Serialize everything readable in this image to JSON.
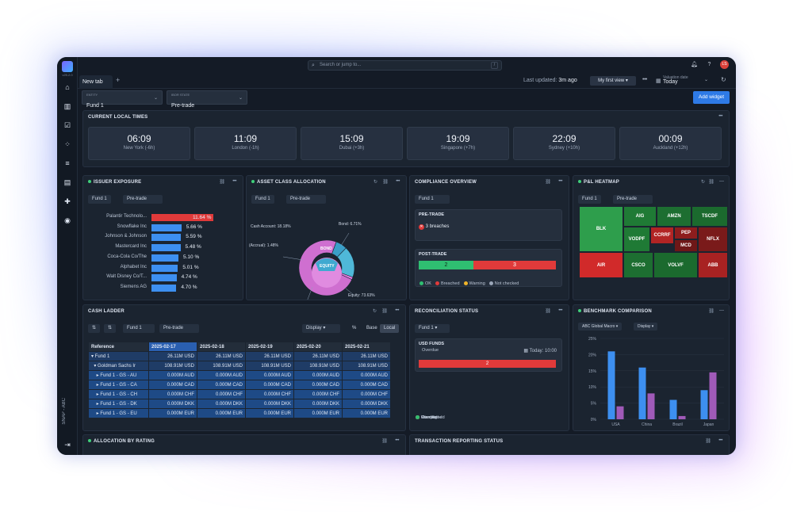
{
  "app": {
    "version": "v25.2.0",
    "snap_label": "SNAP - ABC"
  },
  "search": {
    "placeholder": "Search or jump to...",
    "shortcut": "/"
  },
  "user": {
    "initials": "LS"
  },
  "tabs": [
    {
      "label": "New tab"
    }
  ],
  "header": {
    "last_updated_label": "Last updated:",
    "last_updated_value": "3m ago",
    "view_label": "My first view",
    "valuation_label": "Valuation date",
    "valuation_value": "Today",
    "add_widget": "Add widget"
  },
  "filters": {
    "entity": {
      "label": "ENTITY",
      "value": "Fund 1"
    },
    "ibor": {
      "label": "IBOR STATE",
      "value": "Pre-trade"
    }
  },
  "local_times": {
    "title": "CURRENT LOCAL TIMES",
    "clocks": [
      {
        "time": "06:09",
        "zone": "New York (-6h)"
      },
      {
        "time": "11:09",
        "zone": "London (-1h)"
      },
      {
        "time": "15:09",
        "zone": "Dubai (+3h)"
      },
      {
        "time": "19:09",
        "zone": "Singapore (+7h)"
      },
      {
        "time": "22:09",
        "zone": "Sydney (+10h)"
      },
      {
        "time": "00:09",
        "zone": "Auckland (+12h)"
      }
    ]
  },
  "issuer_exposure": {
    "title": "ISSUER EXPOSURE",
    "fund": "Fund 1",
    "state": "Pre-trade",
    "rows": [
      {
        "name": "Palantir Technolo...",
        "value": "11.64 %",
        "pct": 11.64,
        "color": "#e03a3a"
      },
      {
        "name": "Snowflake Inc",
        "value": "5.66 %",
        "pct": 5.66,
        "color": "#3d8ff0"
      },
      {
        "name": "Johnson & Johnson",
        "value": "5.59 %",
        "pct": 5.59,
        "color": "#3d8ff0"
      },
      {
        "name": "Mastercard Inc",
        "value": "5.48 %",
        "pct": 5.48,
        "color": "#3d8ff0"
      },
      {
        "name": "Coca-Cola Co/The",
        "value": "5.10 %",
        "pct": 5.1,
        "color": "#3d8ff0"
      },
      {
        "name": "Alphabet Inc",
        "value": "5.01 %",
        "pct": 5.01,
        "color": "#3d8ff0"
      },
      {
        "name": "Walt Disney Co/T...",
        "value": "4.74 %",
        "pct": 4.74,
        "color": "#3d8ff0"
      },
      {
        "name": "Siemens AG",
        "value": "4.70 %",
        "pct": 4.7,
        "color": "#3d8ff0"
      }
    ]
  },
  "asset_allocation": {
    "title": "ASSET CLASS ALLOCATION",
    "fund": "Fund 1",
    "state": "Pre-trade",
    "labels": {
      "bond": "Bond: 6.71%",
      "cash": "Cash Account: 18.18%",
      "accrual": "(Accrual): 1.48%",
      "equity": "Equity: 73.63%",
      "inner_bond": "BOND",
      "inner_equity": "EQUITY"
    },
    "slices": [
      {
        "name": "Equity",
        "value": 73.63,
        "color": "#cf6fd0"
      },
      {
        "name": "Cash Account",
        "value": 18.18,
        "color": "#4fb8d8"
      },
      {
        "name": "Bond",
        "value": 6.71,
        "color": "#3a9fc8"
      },
      {
        "name": "(Accrual)",
        "value": 1.48,
        "color": "#e07de0"
      }
    ]
  },
  "compliance": {
    "title": "COMPLIANCE OVERVIEW",
    "fund": "Fund 1",
    "pretrade_title": "PRE-TRADE",
    "breaches": "3 breaches",
    "posttrade_title": "POST-TRADE",
    "ok_count": "2",
    "breached_count": "3",
    "legend": [
      {
        "label": "OK",
        "color": "#2fbf71"
      },
      {
        "label": "Breached",
        "color": "#e03a3a"
      },
      {
        "label": "Warning",
        "color": "#f0b429"
      },
      {
        "label": "Not checked",
        "color": "#9aa6b8"
      }
    ]
  },
  "heatmap": {
    "title": "P&L HEATMAP",
    "fund": "Fund 1",
    "state": "Pre-trade",
    "tiles": [
      {
        "label": "BLK",
        "color": "#2e9e4c"
      },
      {
        "label": "AIG",
        "color": "#1f7a35"
      },
      {
        "label": "AMZN",
        "color": "#1d6e31"
      },
      {
        "label": "TSCDF",
        "color": "#1b6a2e"
      },
      {
        "label": "VODPF",
        "color": "#1f7a35"
      },
      {
        "label": "CCRRF",
        "color": "#b22424"
      },
      {
        "label": "PEP",
        "color": "#8e1d1d"
      },
      {
        "label": "NFLX",
        "color": "#7a1a1a"
      },
      {
        "label": "MCD",
        "color": "#6e1717"
      },
      {
        "label": "AIR",
        "color": "#d12a2a"
      },
      {
        "label": "CSCO",
        "color": "#1d6e31"
      },
      {
        "label": "VOLVF",
        "color": "#1b6a2e"
      },
      {
        "label": "ABB",
        "color": "#a82222"
      }
    ]
  },
  "cash_ladder": {
    "title": "CASH LADDER",
    "fund": "Fund 1",
    "state": "Pre-trade",
    "display": "Display",
    "toggles": [
      "%",
      "Base",
      "Local"
    ],
    "columns": [
      "Reference",
      "2025-02-17",
      "2025-02-18",
      "2025-02-19",
      "2025-02-20",
      "2025-02-21"
    ],
    "rows": [
      {
        "ref": "▾ Fund 1",
        "vals": [
          "26.11M USD",
          "26.11M USD",
          "26.11M USD",
          "26.11M USD",
          "26.11M USD"
        ]
      },
      {
        "ref": "  ▾ Goldman Sachs Ir",
        "vals": [
          "108.91M USD",
          "108.91M USD",
          "108.91M USD",
          "108.91M USD",
          "108.91M USD"
        ]
      },
      {
        "ref": "    ▸ Fund 1 - GS - AU",
        "vals": [
          "0.000M AUD",
          "0.000M AUD",
          "0.000M AUD",
          "0.000M AUD",
          "0.000M AUD"
        ]
      },
      {
        "ref": "    ▸ Fund 1 - GS - CA",
        "vals": [
          "0.000M CAD",
          "0.000M CAD",
          "0.000M CAD",
          "0.000M CAD",
          "0.000M CAD"
        ]
      },
      {
        "ref": "    ▸ Fund 1 - GS - CH",
        "vals": [
          "0.000M CHF",
          "0.000M CHF",
          "0.000M CHF",
          "0.000M CHF",
          "0.000M CHF"
        ]
      },
      {
        "ref": "    ▸ Fund 1 - GS - DK",
        "vals": [
          "0.000M DKK",
          "0.000M DKK",
          "0.000M DKK",
          "0.000M DKK",
          "0.000M DKK"
        ]
      },
      {
        "ref": "    ▸ Fund 1 - GS - EU",
        "vals": [
          "0.000M EUR",
          "0.000M EUR",
          "0.000M EUR",
          "0.000M EUR",
          "0.000M EUR"
        ]
      }
    ]
  },
  "reconciliation": {
    "title": "RECONCILIATION STATUS",
    "fund": "Fund 1",
    "section": "USD FUNDS",
    "overdue": "Overdue",
    "today": "Today: 10:00",
    "count": "2",
    "legend": [
      {
        "label": "Pending",
        "color": "#c9d3e2"
      },
      {
        "label": "Overdue",
        "color": "#e03a3a"
      },
      {
        "label": "Mismatched",
        "color": "#f06a3a"
      },
      {
        "label": "Completed",
        "color": "#2fbf71"
      }
    ]
  },
  "benchmark": {
    "title": "BENCHMARK COMPARISON",
    "selector": "ABC Global Macro",
    "display": "Display"
  },
  "chart_data": {
    "type": "bar",
    "categories": [
      "USA",
      "China",
      "Brazil",
      "Japan"
    ],
    "ylim": [
      0,
      25
    ],
    "yticks": [
      "0%",
      "5%",
      "10%",
      "15%",
      "20%",
      "25%"
    ],
    "series": [
      {
        "values": [
          21,
          16,
          6,
          9
        ],
        "color": "#3d8ff0"
      },
      {
        "values": [
          4,
          8,
          1,
          14.5
        ],
        "color": "#a05ab8"
      }
    ]
  },
  "allocation_rating": {
    "title": "ALLOCATION BY RATING"
  },
  "transaction_reporting": {
    "title": "TRANSACTION REPORTING STATUS"
  }
}
